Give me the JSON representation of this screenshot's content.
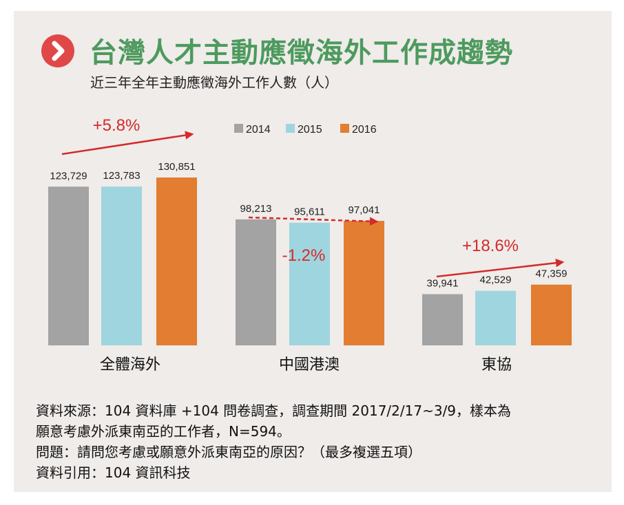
{
  "header": {
    "title": "台灣人才主動應徵海外工作成趨勢",
    "subtitle": "近三年全年主動應徵海外工作人數（人）"
  },
  "chart_data": {
    "type": "bar",
    "title": "台灣人才主動應徵海外工作成趨勢",
    "subtitle": "近三年全年主動應徵海外工作人數（人）",
    "categories": [
      "全體海外",
      "中國港澳",
      "東協"
    ],
    "series": [
      {
        "name": "2014",
        "color": "#a3a3a3",
        "values": [
          123729,
          98213,
          39941
        ],
        "labels": [
          "123,729",
          "98,213",
          "39,941"
        ]
      },
      {
        "name": "2015",
        "color": "#9fd5de",
        "values": [
          123783,
          95611,
          42529
        ],
        "labels": [
          "123,783",
          "95,611",
          "42,529"
        ]
      },
      {
        "name": "2016",
        "color": "#e27d31",
        "values": [
          130851,
          97041,
          47359
        ],
        "labels": [
          "130,851",
          "97,041",
          "47,359"
        ]
      }
    ],
    "legend_position": "top-center",
    "annotations": [
      {
        "category": "全體海外",
        "text": "+5.8%",
        "style": "solid-arrow"
      },
      {
        "category": "中國港澳",
        "text": "-1.2%",
        "style": "dashed-arrow"
      },
      {
        "category": "東協",
        "text": "+18.6%",
        "style": "solid-arrow"
      }
    ],
    "xlabel": "",
    "ylabel": "",
    "grid": false
  },
  "notes": {
    "source": "資料來源：104 資料庫 +104 問卷調查，調查期間 2017/2/17~3/9，樣本為",
    "source_cont": "願意考慮外派東南亞的工作者，N=594。",
    "question": "問題：請問您考慮或願意外派東南亞的原因？（最多複選五項）",
    "citation": "資料引用：104 資訊科技"
  },
  "colors": {
    "panel_background": "#efecea",
    "title_green": "#4d9a5e",
    "icon_red": "#e04848",
    "arrow_red": "#d42a2a"
  }
}
